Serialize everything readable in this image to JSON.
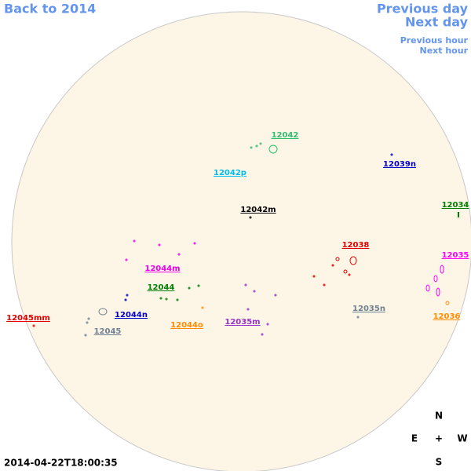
{
  "nav": {
    "back": "Back to 2014",
    "previous_day": "Previous day",
    "next_day": "Next day",
    "previous_hour": "Previous hour",
    "next_hour": "Next hour",
    "color": "#6495ed"
  },
  "regions": [
    {
      "label": "12042",
      "color": "#2fbf6f"
    },
    {
      "label": "12042p",
      "color": "#00bfef"
    },
    {
      "label": "12039n",
      "color": "#0000c8"
    },
    {
      "label": "12042m",
      "color": "#000000"
    },
    {
      "label": "12034",
      "color": "#008000"
    },
    {
      "label": "12038",
      "color": "#e00000"
    },
    {
      "label": "12035",
      "color": "#ff00ff"
    },
    {
      "label": "12044m",
      "color": "#ee00ee"
    },
    {
      "label": "12044",
      "color": "#008000"
    },
    {
      "label": "12044n",
      "color": "#0000c8"
    },
    {
      "label": "12045mm",
      "color": "#e00000"
    },
    {
      "label": "12045",
      "color": "#708090"
    },
    {
      "label": "12044o",
      "color": "#ff8c00"
    },
    {
      "label": "12035m",
      "color": "#9932cc"
    },
    {
      "label": "12035n",
      "color": "#708090"
    },
    {
      "label": "12036",
      "color": "#ff8c00"
    }
  ],
  "compass": {
    "north": "N",
    "east": "E",
    "center": "+",
    "west": "W",
    "south": "S"
  },
  "timestamp": "2014-04-22T18:00:35"
}
